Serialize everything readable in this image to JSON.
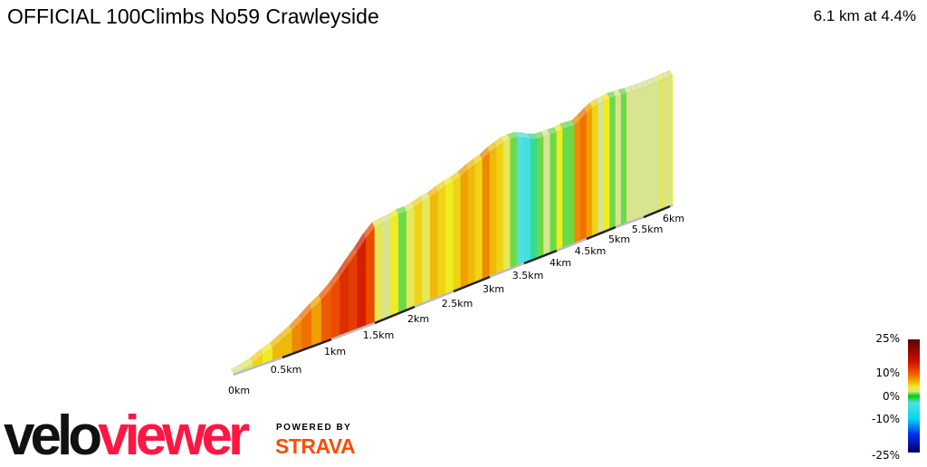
{
  "header": {
    "title": "OFFICIAL 100Climbs No59 Crawleyside",
    "summary": "6.1 km at 4.4%"
  },
  "chart_data": {
    "type": "area",
    "subtype": "3d-gradient-profile",
    "xlabel": "",
    "ylabel": "",
    "x_unit": "km",
    "x_range": [
      0,
      6.1
    ],
    "segment_length_km": 0.1,
    "gradients_percent": [
      2,
      3,
      5,
      4,
      6,
      6,
      8,
      9,
      7,
      10,
      11,
      13,
      12,
      14,
      11,
      3,
      2,
      4,
      1,
      3,
      5,
      3,
      6,
      5,
      4,
      5,
      7,
      6,
      5,
      8,
      6,
      5,
      3,
      1,
      -3,
      -4,
      -2,
      1,
      2,
      1,
      4,
      1,
      1,
      8,
      9,
      7,
      5,
      2,
      4,
      1,
      2,
      1,
      2,
      2,
      2,
      2,
      2,
      2,
      3,
      2,
      3
    ],
    "x_ticks": [
      "0km",
      "0.5km",
      "1km",
      "1.5km",
      "2km",
      "2.5km",
      "3km",
      "3.5km",
      "4km",
      "4.5km",
      "5km",
      "5.5km",
      "6km"
    ],
    "color_scale": {
      "labels": [
        "25%",
        "10%",
        "0%",
        "-10%",
        "-25%"
      ],
      "stops": [
        {
          "pct": 25,
          "color": "#5a0000"
        },
        {
          "pct": 15,
          "color": "#d01000"
        },
        {
          "pct": 10,
          "color": "#f05a00"
        },
        {
          "pct": 7,
          "color": "#f0a000"
        },
        {
          "pct": 4,
          "color": "#f0ec20"
        },
        {
          "pct": 2,
          "color": "#d8e490"
        },
        {
          "pct": 0,
          "color": "#00d000"
        },
        {
          "pct": -3,
          "color": "#50e0e0"
        },
        {
          "pct": -10,
          "color": "#00d8f0"
        },
        {
          "pct": -17,
          "color": "#0030f0"
        },
        {
          "pct": -25,
          "color": "#000060"
        }
      ]
    },
    "grid": false,
    "legend": "right"
  },
  "branding": {
    "logo_part1": "velo",
    "logo_part2": "viewer",
    "powered_by": "POWERED BY",
    "strava": "STRAVA",
    "logo_color": "#ff1744",
    "strava_color": "#fc4c02"
  }
}
